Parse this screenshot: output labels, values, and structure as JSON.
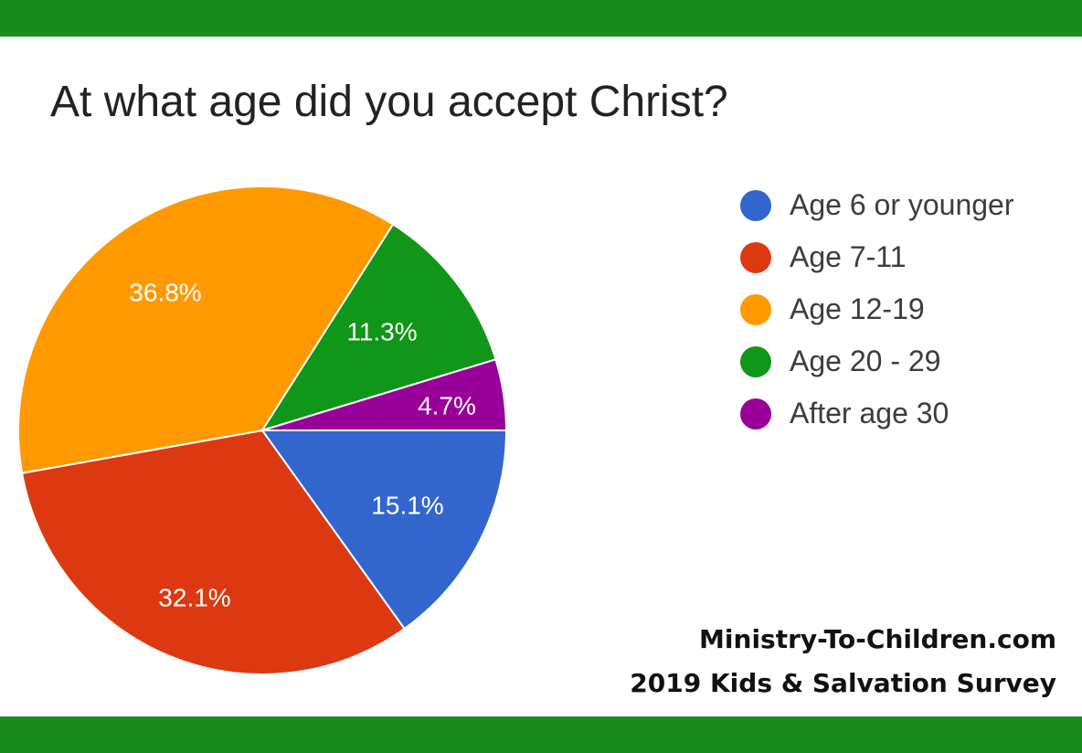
{
  "colors": {
    "frame": "#1a8c1f",
    "blue": "#3366cc",
    "red": "#dc3912",
    "orange": "#ff9900",
    "green": "#109618",
    "purple": "#990099"
  },
  "credit": {
    "line1": "Ministry-To-Children.com",
    "line2": "2019 Kids & Salvation Survey"
  },
  "chart_data": {
    "type": "pie",
    "title": "At what age did you accept Christ?",
    "legend_position": "right",
    "slices": [
      {
        "label": "Age 6 or younger",
        "value": 15.1,
        "display": "15.1%",
        "color": "#3366cc"
      },
      {
        "label": "Age 7-11",
        "value": 32.1,
        "display": "32.1%",
        "color": "#dc3912"
      },
      {
        "label": "Age 12-19",
        "value": 36.8,
        "display": "36.8%",
        "color": "#ff9900"
      },
      {
        "label": "Age 20 - 29",
        "value": 11.3,
        "display": "11.3%",
        "color": "#109618"
      },
      {
        "label": "After age 30",
        "value": 4.7,
        "display": "4.7%",
        "color": "#990099"
      }
    ]
  }
}
